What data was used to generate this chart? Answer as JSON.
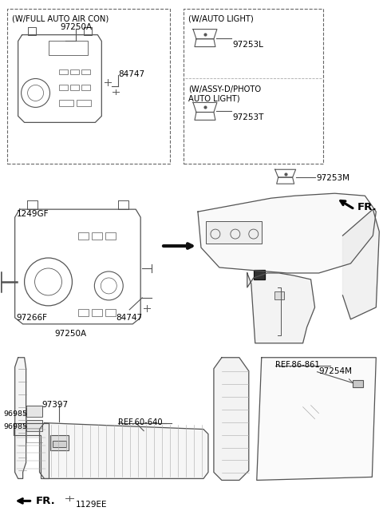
{
  "bg_color": "#ffffff",
  "line_color": "#555555",
  "text_color": "#000000",
  "labels": {
    "box1_title": "(W/FULL AUTO AIR CON)",
    "box1_part1": "97250A",
    "box1_part2": "84747",
    "box2_title1": "(W/AUTO LIGHT)",
    "box2_part1": "97253L",
    "box2_title2": "(W/ASSY-D/PHOTO\nAUTO LIGHT)",
    "box2_part2": "97253T",
    "mid_part1": "1249GF",
    "mid_part2": "97266F",
    "mid_part3": "84747",
    "mid_part4": "97250A",
    "dash_part": "97253M",
    "ref1": "REF.86-861",
    "ref2": "REF.60-640",
    "bot_part1": "97397",
    "bot_part2": "96985",
    "bot_part3": "96985",
    "bot_part4": "1129EE",
    "bot_part5": "97254M",
    "fr1": "FR.",
    "fr2": "FR."
  }
}
